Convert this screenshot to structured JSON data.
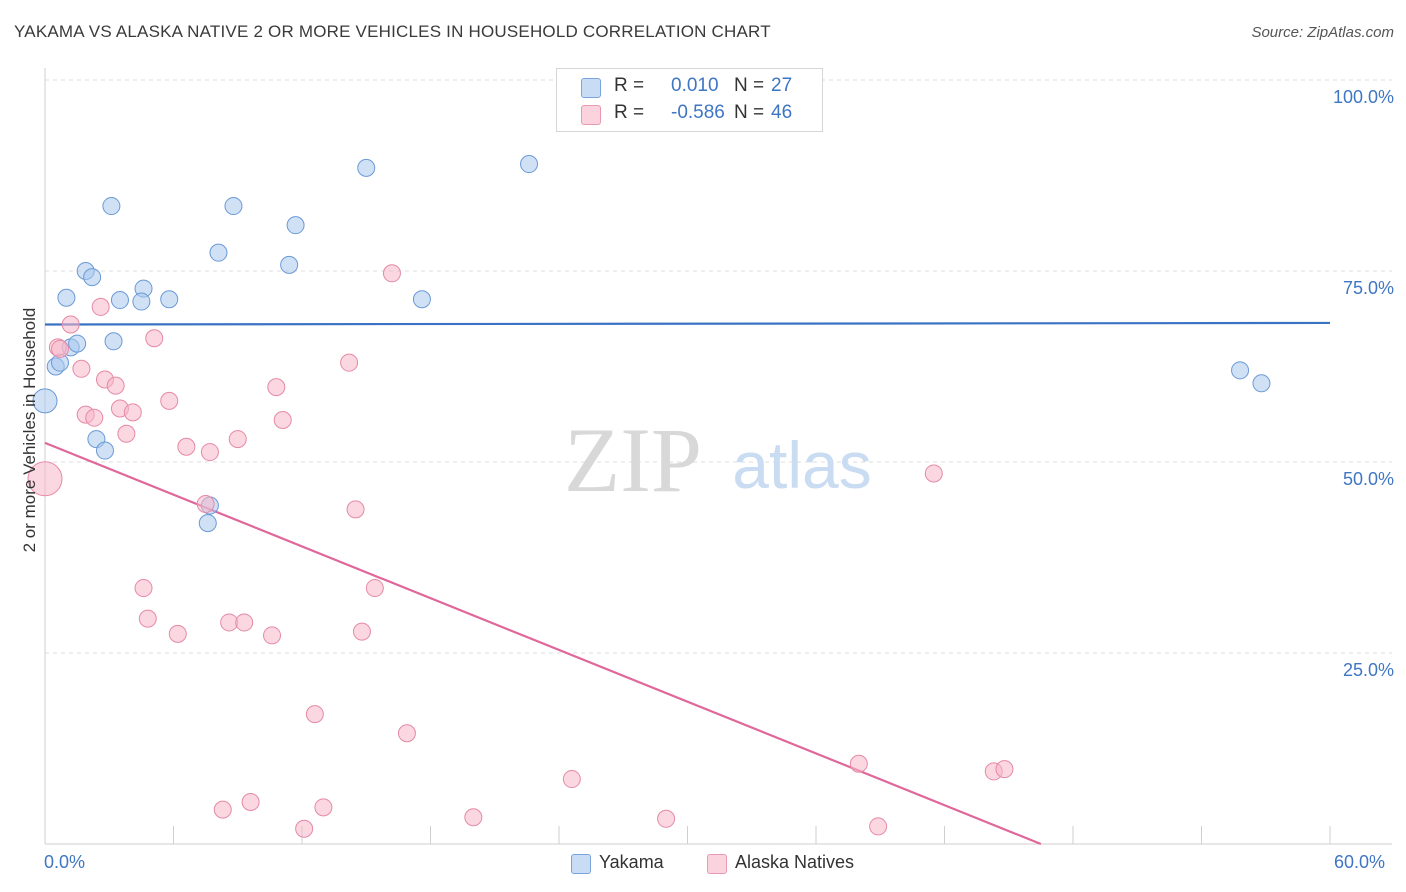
{
  "title": "YAKAMA VS ALASKA NATIVE 2 OR MORE VEHICLES IN HOUSEHOLD CORRELATION CHART",
  "source": "Source: ZipAtlas.com",
  "watermark": {
    "zip": "ZIP",
    "atlas": "atlas"
  },
  "stats": [
    {
      "label": "R =",
      "r": "0.010",
      "n_label": "N =",
      "n": "27",
      "color": "#aac8ef"
    },
    {
      "label": "R =",
      "r": "-0.586",
      "n_label": "N =",
      "n": "46",
      "color": "#f7b6c8"
    }
  ],
  "legend": [
    {
      "name": "Yakama",
      "color": "#aac8ef"
    },
    {
      "name": "Alaska Natives",
      "color": "#f7b6c8"
    }
  ],
  "chart_data": {
    "type": "scatter",
    "title": "YAKAMA VS ALASKA NATIVE 2 OR MORE VEHICLES IN HOUSEHOLD CORRELATION CHART",
    "xlabel": "",
    "ylabel": "2 or more Vehicles in Household",
    "xlim": [
      0,
      60
    ],
    "ylim": [
      0,
      100
    ],
    "x_tick_labels": [
      "0.0%",
      "60.0%"
    ],
    "y_tick_labels": [
      "100.0%",
      "75.0%",
      "50.0%",
      "25.0%"
    ],
    "y_ticks": [
      100,
      75,
      50,
      25
    ],
    "grid": true,
    "legend_position": "bottom",
    "series": [
      {
        "name": "Yakama",
        "color": "#aac8ef",
        "stroke": "#6a9ad6",
        "trend": {
          "color": "#3b73c4",
          "x": [
            0,
            60
          ],
          "y": [
            68.0,
            68.2
          ]
        },
        "points": [
          [
            0.0,
            58.0
          ],
          [
            0.5,
            62.5
          ],
          [
            0.7,
            63.0
          ],
          [
            1.0,
            71.5
          ],
          [
            1.2,
            65.0
          ],
          [
            1.5,
            65.5
          ],
          [
            1.9,
            75.0
          ],
          [
            2.2,
            74.2
          ],
          [
            2.4,
            53.0
          ],
          [
            2.8,
            51.5
          ],
          [
            3.1,
            83.5
          ],
          [
            3.2,
            65.8
          ],
          [
            3.5,
            71.2
          ],
          [
            4.6,
            72.7
          ],
          [
            4.5,
            71.0
          ],
          [
            5.8,
            71.3
          ],
          [
            7.6,
            42.0
          ],
          [
            7.7,
            44.3
          ],
          [
            8.1,
            77.4
          ],
          [
            8.8,
            83.5
          ],
          [
            11.4,
            75.8
          ],
          [
            11.7,
            81.0
          ],
          [
            15.0,
            88.5
          ],
          [
            17.6,
            71.3
          ],
          [
            22.6,
            89.0
          ],
          [
            55.8,
            62.0
          ],
          [
            56.8,
            60.3
          ]
        ]
      },
      {
        "name": "Alaska Natives",
        "color": "#f7b6c8",
        "stroke": "#e58aa6",
        "trend": {
          "color": "#e0679a",
          "x": [
            0,
            46.5
          ],
          "y": [
            52.5,
            0
          ]
        },
        "points": [
          [
            0.0,
            47.8
          ],
          [
            0.6,
            65.0
          ],
          [
            0.7,
            64.8
          ],
          [
            1.2,
            68.0
          ],
          [
            1.7,
            62.2
          ],
          [
            1.9,
            56.2
          ],
          [
            2.3,
            55.8
          ],
          [
            2.6,
            70.3
          ],
          [
            2.8,
            60.8
          ],
          [
            3.3,
            60.0
          ],
          [
            3.5,
            57.0
          ],
          [
            3.8,
            53.7
          ],
          [
            4.1,
            56.5
          ],
          [
            4.6,
            33.5
          ],
          [
            4.8,
            29.5
          ],
          [
            5.1,
            66.2
          ],
          [
            5.8,
            58.0
          ],
          [
            6.2,
            27.5
          ],
          [
            6.6,
            52.0
          ],
          [
            7.5,
            44.5
          ],
          [
            7.7,
            51.3
          ],
          [
            8.3,
            4.5
          ],
          [
            8.6,
            29.0
          ],
          [
            9.0,
            53.0
          ],
          [
            9.3,
            29.0
          ],
          [
            9.6,
            5.5
          ],
          [
            10.6,
            27.3
          ],
          [
            10.8,
            59.8
          ],
          [
            11.1,
            55.5
          ],
          [
            12.1,
            2.0
          ],
          [
            12.6,
            17.0
          ],
          [
            13.0,
            4.8
          ],
          [
            14.2,
            63.0
          ],
          [
            14.5,
            43.8
          ],
          [
            14.8,
            27.8
          ],
          [
            15.4,
            33.5
          ],
          [
            16.2,
            74.7
          ],
          [
            16.9,
            14.5
          ],
          [
            20.0,
            3.5
          ],
          [
            24.6,
            8.5
          ],
          [
            29.0,
            3.3
          ],
          [
            38.0,
            10.5
          ],
          [
            38.9,
            2.3
          ],
          [
            41.5,
            48.5
          ],
          [
            44.3,
            9.5
          ],
          [
            44.8,
            9.8
          ]
        ]
      }
    ]
  }
}
